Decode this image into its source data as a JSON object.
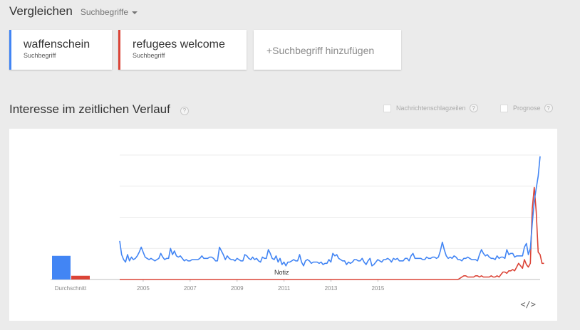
{
  "header": {
    "title": "Vergleichen",
    "mode_label": "Suchbegriffe"
  },
  "terms": [
    {
      "name": "waffenschein",
      "type": "Suchbegriff",
      "color": "#4285f4"
    },
    {
      "name": "refugees welcome",
      "type": "Suchbegriff",
      "color": "#db4437"
    }
  ],
  "add_term_label": "+Suchbegriff hinzufügen",
  "section": {
    "title": "Interesse im zeitlichen Verlauf",
    "help": "?",
    "option_news": "Nachrichtenschlagzeilen",
    "option_forecast": "Prognose"
  },
  "embed_label": "</>",
  "chart_data": {
    "type": "line",
    "x_ticks": [
      "2005",
      "2007",
      "2009",
      "2011",
      "2013",
      "2015"
    ],
    "average_label": "Durchschnitt",
    "annotation": "Notiz",
    "ylim": [
      0,
      100
    ],
    "grid": true,
    "start_year": 2004.0,
    "step_years": 0.0833,
    "averages": {
      "waffenschein": 19,
      "refugees welcome": 3
    },
    "series": [
      {
        "name": "waffenschein",
        "color": "#4285f4",
        "values": [
          31,
          20,
          16,
          14,
          20,
          15,
          18,
          16,
          17,
          19,
          22,
          26,
          22,
          18,
          17,
          16,
          17,
          16,
          15,
          16,
          17,
          21,
          18,
          16,
          17,
          17,
          25,
          20,
          23,
          19,
          18,
          19,
          17,
          15,
          16,
          15,
          15,
          16,
          16,
          16,
          16,
          17,
          19,
          17,
          17,
          17,
          18,
          18,
          17,
          15,
          15,
          26,
          23,
          20,
          16,
          19,
          17,
          16,
          16,
          15,
          17,
          16,
          15,
          15,
          20,
          19,
          17,
          16,
          18,
          16,
          17,
          15,
          14,
          18,
          17,
          17,
          24,
          21,
          17,
          16,
          19,
          14,
          17,
          12,
          14,
          11,
          14,
          14,
          15,
          16,
          15,
          15,
          20,
          14,
          11,
          15,
          16,
          15,
          13,
          14,
          14,
          14,
          13,
          14,
          12,
          13,
          13,
          16,
          14,
          21,
          19,
          20,
          17,
          16,
          15,
          15,
          12,
          14,
          13,
          14,
          16,
          16,
          15,
          15,
          17,
          14,
          12,
          15,
          17,
          11,
          12,
          14,
          16,
          15,
          14,
          16,
          16,
          17,
          16,
          14,
          17,
          16,
          17,
          15,
          15,
          15,
          17,
          17,
          15,
          19,
          21,
          17,
          17,
          17,
          17,
          16,
          16,
          18,
          17,
          17,
          18,
          18,
          17,
          18,
          23,
          30,
          24,
          19,
          17,
          18,
          17,
          19,
          18,
          16,
          16,
          15,
          17,
          17,
          18,
          17,
          16,
          16,
          16,
          15,
          20,
          24,
          21,
          19,
          20,
          18,
          17,
          17,
          16,
          19,
          17,
          18,
          18,
          17,
          24,
          20,
          21,
          21,
          18,
          19,
          19,
          19,
          19,
          26,
          29,
          20,
          25,
          45,
          63,
          73,
          83,
          99
        ]
      },
      {
        "name": "refugees welcome",
        "color": "#db4437",
        "values": [
          0,
          0,
          0,
          0,
          0,
          0,
          0,
          0,
          0,
          0,
          0,
          0,
          0,
          0,
          0,
          0,
          0,
          0,
          0,
          0,
          0,
          0,
          0,
          0,
          0,
          0,
          0,
          0,
          0,
          0,
          0,
          0,
          0,
          0,
          0,
          0,
          0,
          0,
          0,
          0,
          0,
          0,
          0,
          0,
          0,
          0,
          0,
          0,
          0,
          0,
          0,
          0,
          0,
          0,
          0,
          0,
          0,
          0,
          0,
          0,
          0,
          0,
          0,
          0,
          0,
          0,
          0,
          0,
          0,
          0,
          0,
          0,
          0,
          0,
          0,
          0,
          0,
          0,
          0,
          0,
          0,
          0,
          0,
          0,
          0,
          0,
          0,
          0,
          0,
          0,
          0,
          0,
          0,
          0,
          0,
          0,
          0,
          0,
          0,
          0,
          0,
          0,
          0,
          0,
          0,
          0,
          0,
          0,
          0,
          0,
          0,
          0,
          0,
          0,
          0,
          0,
          0,
          0,
          0,
          0,
          0,
          0,
          0,
          0,
          0,
          0,
          0,
          0,
          0,
          0,
          0,
          0,
          0,
          0,
          0,
          0,
          0,
          0,
          0,
          0,
          0,
          0,
          0,
          0,
          0,
          0,
          0,
          0,
          0,
          0,
          0,
          0,
          0,
          0,
          0,
          0,
          0,
          0,
          0,
          0,
          0,
          0,
          0,
          0,
          0,
          0,
          0,
          0,
          0,
          0,
          0,
          0,
          0,
          0,
          1,
          2,
          3,
          3,
          2,
          2,
          2,
          2,
          3,
          3,
          2,
          3,
          2,
          2,
          2,
          2,
          3,
          2,
          2,
          3,
          2,
          4,
          6,
          6,
          5,
          7,
          7,
          8,
          7,
          10,
          13,
          11,
          9,
          16,
          12,
          10,
          13,
          57,
          74,
          55,
          22,
          20,
          13,
          13
        ]
      }
    ]
  }
}
